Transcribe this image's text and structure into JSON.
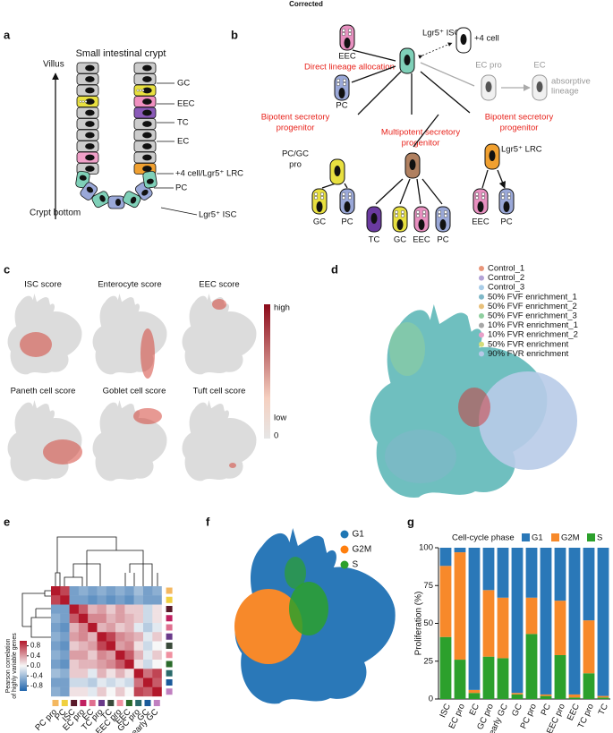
{
  "header": {
    "title": "Corrected"
  },
  "panel_labels": [
    "a",
    "b",
    "c",
    "d",
    "e",
    "f",
    "g"
  ],
  "panel_a": {
    "title": "Small intestinal crypt",
    "axis_top": "Villus",
    "axis_bottom": "Crypt bottom",
    "labels": [
      "GC",
      "EEC",
      "TC",
      "EC",
      "+4 cell/Lgr5⁺ LRC",
      "PC",
      "Lgr5⁺ ISC"
    ]
  },
  "panel_b": {
    "isc": "Lgr5⁺ ISC",
    "plus4": "+4 cell",
    "eec_top": "EEC",
    "direct": "Direct lineage allocation",
    "pc_top": "PC",
    "ec_pro": "EC pro",
    "ec": "EC",
    "absorptive": [
      "absorptive",
      "lineage"
    ],
    "bipotent_left": [
      "Bipotent secretory",
      "progenitor"
    ],
    "multipotent": [
      "Multipotent secretory",
      "progenitor"
    ],
    "bipotent_right": [
      "Bipotent secretory",
      "progenitor"
    ],
    "pc_gc_pro": [
      "PC/GC",
      "pro"
    ],
    "lrc": "Lgr5⁺ LRC",
    "bottom": [
      "GC",
      "PC",
      "TC",
      "GC",
      "EEC",
      "PC",
      "EEC",
      "PC"
    ]
  },
  "panel_c": {
    "titles": [
      "ISC score",
      "Enterocyte score",
      "EEC score",
      "Paneth cell score",
      "Goblet cell score",
      "Tuft cell score"
    ],
    "colorbar_labels": [
      "high",
      "low",
      "0"
    ]
  },
  "panel_d": {
    "legend": [
      {
        "name": "Control_1",
        "color": "#e9967a"
      },
      {
        "name": "Control_2",
        "color": "#b3a3d6"
      },
      {
        "name": "Control_3",
        "color": "#a9cde8"
      },
      {
        "name": "50% FVF enrichment_1",
        "color": "#7fb8c8"
      },
      {
        "name": "50% FVF enrichment_2",
        "color": "#e8c07a"
      },
      {
        "name": "50% FVF enrichment_3",
        "color": "#8fcf9f"
      },
      {
        "name": "10% FVR enrichment_1",
        "color": "#a7a7a7"
      },
      {
        "name": "10% FVR enrichment_2",
        "color": "#e8a0c8"
      },
      {
        "name": "50% FVR enrichment",
        "color": "#d4dc7a"
      },
      {
        "name": "90% FVR enrichment",
        "color": "#b8c8e8"
      }
    ]
  },
  "panel_f": {
    "legend": [
      {
        "name": "G1",
        "color": "#1f77b4"
      },
      {
        "name": "G2M",
        "color": "#ff7f0e"
      },
      {
        "name": "S",
        "color": "#2ca02c"
      }
    ]
  },
  "chart_data": [
    {
      "type": "heatmap",
      "categories": [
        "PC pro",
        "PC",
        "ISC",
        "EC pro",
        "EC",
        "TC pro",
        "TC",
        "EEC pro",
        "EEC",
        "GC pro",
        "GC",
        "early GC"
      ],
      "category_colors": [
        "#f4b860",
        "#f0d040",
        "#5a1a2a",
        "#c02060",
        "#e07090",
        "#6a3a8a",
        "#3a4a3a",
        "#f090a0",
        "#2a6a2a",
        "#2a6a6a",
        "#1a5a9a",
        "#c080c0"
      ],
      "values": [
        [
          1,
          0.8,
          -0.6,
          -0.5,
          -0.6,
          -0.5,
          -0.6,
          -0.5,
          -0.6,
          -0.4,
          -0.6,
          -0.5
        ],
        [
          0.8,
          1,
          -0.6,
          -0.6,
          -0.7,
          -0.6,
          -0.7,
          -0.6,
          -0.7,
          -0.5,
          -0.6,
          -0.6
        ],
        [
          -0.6,
          -0.6,
          1,
          0.7,
          0.3,
          0.4,
          0.2,
          0.4,
          0.2,
          0.2,
          -0.2,
          0.1
        ],
        [
          -0.5,
          -0.6,
          0.7,
          1,
          0.5,
          0.5,
          0.3,
          0.4,
          0.3,
          0.2,
          -0.2,
          0.1
        ],
        [
          -0.6,
          -0.7,
          0.3,
          0.5,
          1,
          0.3,
          0.4,
          0.2,
          0.3,
          -0.1,
          -0.3,
          -0.1
        ],
        [
          -0.5,
          -0.6,
          0.4,
          0.5,
          0.3,
          1,
          0.8,
          0.5,
          0.4,
          0.3,
          -0.1,
          0.2
        ],
        [
          -0.6,
          -0.7,
          0.2,
          0.3,
          0.4,
          0.8,
          1,
          0.4,
          0.5,
          0.1,
          -0.2,
          0
        ],
        [
          -0.5,
          -0.6,
          0.4,
          0.4,
          0.2,
          0.5,
          0.4,
          1,
          0.7,
          0.3,
          -0.1,
          0.2
        ],
        [
          -0.6,
          -0.7,
          0.2,
          0.3,
          0.3,
          0.4,
          0.5,
          0.7,
          1,
          0.1,
          -0.2,
          0
        ],
        [
          -0.4,
          -0.5,
          0.2,
          0.2,
          -0.1,
          0.3,
          0.1,
          0.3,
          0.1,
          1,
          0.6,
          0.8
        ],
        [
          -0.6,
          -0.6,
          -0.2,
          -0.2,
          -0.3,
          -0.1,
          -0.2,
          -0.1,
          -0.2,
          0.6,
          1,
          0.7
        ],
        [
          -0.5,
          -0.6,
          0.1,
          0.1,
          -0.1,
          0.2,
          0,
          0.2,
          0,
          0.8,
          0.7,
          1
        ]
      ],
      "zlim": [
        -1,
        1
      ],
      "zticks": [
        0.8,
        0.4,
        {
          "value": 0,
          "label": "0.0"
        },
        -0.4,
        -0.8
      ],
      "colormap": [
        "#2166ac",
        "#f7f7f7",
        "#b2182b"
      ],
      "colorbar_label": [
        "Pearson correlation",
        "of highly variable genes"
      ]
    },
    {
      "type": "bar",
      "stacked": true,
      "legend_title": "Cell-cycle phase",
      "ylabel": "Proliferation (%)",
      "categories": [
        "ISC",
        "EC pro",
        "EC",
        "GC pro",
        "early GC",
        "GC",
        "PC pro",
        "PC",
        "EEC pro",
        "EEC",
        "TC pro",
        "TC"
      ],
      "series": [
        {
          "name": "G1",
          "color": "#2a78b8",
          "values": [
            12,
            3,
            94,
            28,
            33,
            96,
            33,
            97,
            35,
            97,
            48,
            98
          ]
        },
        {
          "name": "G2M",
          "color": "#f7892a",
          "values": [
            47,
            71,
            2,
            44,
            40,
            1,
            24,
            1,
            36,
            2,
            35,
            1
          ]
        },
        {
          "name": "S",
          "color": "#2ca02c",
          "values": [
            41,
            26,
            4,
            28,
            27,
            3,
            43,
            2,
            29,
            1,
            17,
            1
          ]
        }
      ],
      "ylim": [
        0,
        100
      ],
      "yticks": [
        0,
        25,
        50,
        75,
        100
      ]
    }
  ]
}
